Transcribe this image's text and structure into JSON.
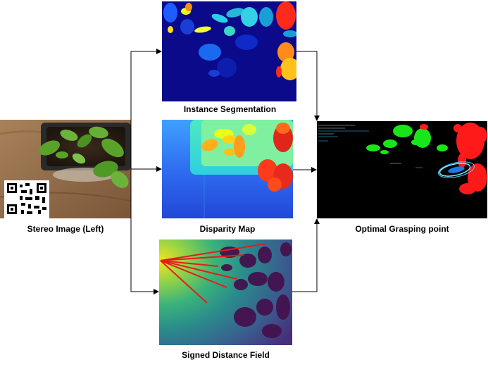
{
  "panels": {
    "stereo": {
      "caption": "Stereo Image (Left)"
    },
    "segmentation": {
      "caption": "Instance Segmentation"
    },
    "disparity": {
      "caption": "Disparity Map"
    },
    "sdf": {
      "caption": "Signed Distance Field"
    },
    "grasp": {
      "caption": "Optimal Grasping point"
    }
  },
  "colors": {
    "arrow": "#000000",
    "seg_background": "#0a0a8a",
    "disparity_background": "#2b57e0",
    "sdf_background": "#3d1a5e",
    "grasp_background": "#000000",
    "grasp_leaf_left": "#19e619",
    "grasp_leaf_right": "#ff1a1a",
    "sdf_rays": "#e01e1e"
  }
}
